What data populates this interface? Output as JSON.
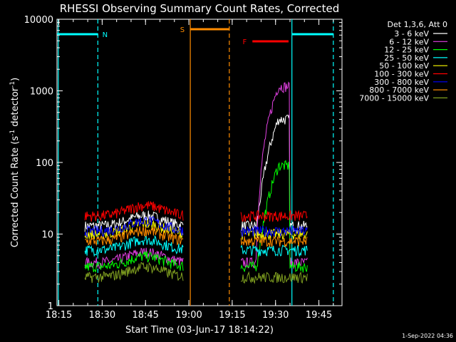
{
  "chart_data": {
    "type": "line",
    "title": "RHESSI Observing Summary Count Rates, Corrected",
    "xlabel": "Start Time (03-Jun-17 18:14:22)",
    "ylabel": "Corrected Count Rate (s⁻¹ detector⁻¹)",
    "ylabel_main": "Corrected Count Rate (s",
    "ylabel_sup1": "-1",
    "ylabel_mid": " detector",
    "ylabel_sup2": "-1",
    "ylabel_end": ")",
    "yscale": "log",
    "xlim": [
      "18:14:22",
      "19:53:00"
    ],
    "ylim": [
      1,
      10000
    ],
    "x_ticks": [
      "18:15",
      "18:30",
      "18:45",
      "19:00",
      "19:15",
      "19:30",
      "19:45"
    ],
    "y_ticks": [
      {
        "value": 1,
        "label": "1"
      },
      {
        "value": 10,
        "label": "10"
      },
      {
        "value": 100,
        "label": "100"
      },
      {
        "value": 1000,
        "label": "1000"
      },
      {
        "value": 10000,
        "label": "10000"
      }
    ],
    "legend_header": "Det 1,3,6, Att 0",
    "legend_position": "right",
    "series": [
      {
        "name": "3 - 6 keV",
        "color": "#ffffff"
      },
      {
        "name": "6 - 12 keV",
        "color": "#e040e0"
      },
      {
        "name": "12 - 25 keV",
        "color": "#00ff00"
      },
      {
        "name": "25 - 50 keV",
        "color": "#00ffff"
      },
      {
        "name": "50 - 100 keV",
        "color": "#ffff00"
      },
      {
        "name": "100 - 300 keV",
        "color": "#ff0000"
      },
      {
        "name": "300 - 800 keV",
        "color": "#0000ff"
      },
      {
        "name": "800 - 7000 keV",
        "color": "#ff8c00"
      },
      {
        "name": "7000 - 15000 keV",
        "color": "#80a020"
      }
    ],
    "intervals": [
      {
        "label": "N",
        "color": "#00ffff",
        "segments": [
          [
            "18:14:22",
            "18:28:30"
          ],
          [
            "19:35:40",
            "19:50:00"
          ]
        ]
      },
      {
        "label": "S",
        "color": "#ff8c00",
        "segments": [
          [
            "19:00:30",
            "19:14:00"
          ]
        ]
      },
      {
        "label": "F",
        "color": "#ff0000",
        "segments": [
          [
            "19:22:00",
            "19:34:30"
          ]
        ]
      }
    ],
    "interval_bounds": [
      {
        "color": "#00ffff",
        "style": "solid",
        "t": "18:14:50"
      },
      {
        "color": "#00ffff",
        "style": "dashed",
        "t": "18:28:30"
      },
      {
        "color": "#ff8c00",
        "style": "solid",
        "t": "19:00:30"
      },
      {
        "color": "#ff8c00",
        "style": "dashed",
        "t": "19:14:00"
      },
      {
        "color": "#00ffff",
        "style": "solid",
        "t": "19:35:40"
      },
      {
        "color": "#00ffff",
        "style": "dashed",
        "t": "19:50:00"
      }
    ]
  },
  "footer": {
    "date_stamp": "1-Sep-2022 04:36"
  }
}
